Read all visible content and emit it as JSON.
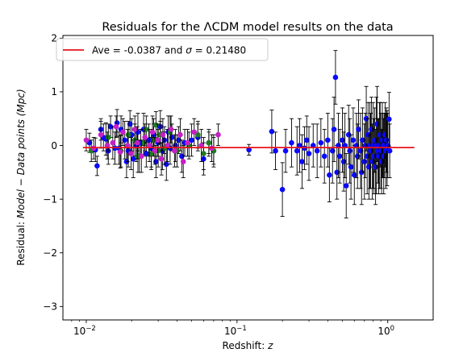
{
  "chart_data": {
    "type": "scatter",
    "title": "Residuals for the ΛCDM model results on the data",
    "xlabel_prefix": "Redshift: ",
    "xlabel_var": "z",
    "ylabel_prefix": "Residual: ",
    "ylabel_var": "Model − Data points (Mpc)",
    "xscale": "log",
    "xlim": [
      0.007,
      2.0
    ],
    "ylim": [
      -3.25,
      2.05
    ],
    "xticks": [
      {
        "value": 0.01,
        "base": "10",
        "exp": "−2"
      },
      {
        "value": 0.1,
        "base": "10",
        "exp": "−1"
      },
      {
        "value": 1,
        "base": "10",
        "exp": "0"
      }
    ],
    "yticks": [
      {
        "value": 2,
        "label": "2"
      },
      {
        "value": 1,
        "label": "1"
      },
      {
        "value": 0,
        "label": "0"
      },
      {
        "value": -1,
        "label": "−1"
      },
      {
        "value": -2,
        "label": "−2"
      },
      {
        "value": -3,
        "label": "−3"
      }
    ],
    "legend": {
      "placement": "top-left",
      "text_prefix": "Ave = -0.0387 and ",
      "text_sigma": "σ",
      "text_suffix": " = 0.21480"
    },
    "fit_line": {
      "ave": -0.0387,
      "sigma": 0.2148,
      "x_range": [
        0.0095,
        1.5
      ],
      "color": "#e8131b"
    },
    "colors": {
      "blue": "#0a0aff",
      "green": "#1e7d1e",
      "magenta": "#c71fc7",
      "error": "#000000"
    },
    "series": [
      {
        "color_key": "blue",
        "points": [
          [
            0.0105,
            0.05,
            0.18
          ],
          [
            0.0115,
            -0.08,
            0.22
          ],
          [
            0.0118,
            -0.38,
            0.18
          ],
          [
            0.0125,
            0.3,
            0.2
          ],
          [
            0.013,
            0.15,
            0.25
          ],
          [
            0.0135,
            0.12,
            0.3
          ],
          [
            0.014,
            -0.1,
            0.25
          ],
          [
            0.0145,
            0.35,
            0.2
          ],
          [
            0.0155,
            -0.05,
            0.3
          ],
          [
            0.016,
            0.42,
            0.25
          ],
          [
            0.0165,
            -0.05,
            0.3
          ],
          [
            0.017,
            0.3,
            0.25
          ],
          [
            0.018,
            0.1,
            0.35
          ],
          [
            0.0185,
            -0.3,
            0.3
          ],
          [
            0.019,
            -0.1,
            0.3
          ],
          [
            0.0195,
            0.4,
            0.25
          ],
          [
            0.02,
            0.2,
            0.3
          ],
          [
            0.0205,
            -0.25,
            0.35
          ],
          [
            0.0215,
            0.0,
            0.3
          ],
          [
            0.022,
            0.25,
            0.35
          ],
          [
            0.0225,
            -0.2,
            0.3
          ],
          [
            0.023,
            0.05,
            0.25
          ],
          [
            0.024,
            0.3,
            0.3
          ],
          [
            0.025,
            -0.15,
            0.25
          ],
          [
            0.026,
            0.1,
            0.3
          ],
          [
            0.027,
            -0.05,
            0.35
          ],
          [
            0.028,
            0.2,
            0.3
          ],
          [
            0.029,
            -0.3,
            0.3
          ],
          [
            0.03,
            0.05,
            0.25
          ],
          [
            0.031,
            0.35,
            0.3
          ],
          [
            0.032,
            -0.1,
            0.35
          ],
          [
            0.033,
            0.1,
            0.25
          ],
          [
            0.034,
            -0.35,
            0.3
          ],
          [
            0.035,
            0.25,
            0.3
          ],
          [
            0.036,
            -0.05,
            0.3
          ],
          [
            0.037,
            0.15,
            0.25
          ],
          [
            0.039,
            0.0,
            0.3
          ],
          [
            0.041,
            0.1,
            0.25
          ],
          [
            0.043,
            -0.2,
            0.3
          ],
          [
            0.045,
            0.05,
            0.25
          ],
          [
            0.05,
            0.1,
            0.3
          ],
          [
            0.055,
            0.15,
            0.25
          ],
          [
            0.06,
            -0.25,
            0.3
          ],
          [
            0.065,
            0.05,
            0.25
          ],
          [
            0.07,
            -0.1,
            0.3
          ],
          [
            0.12,
            -0.08,
            0.1
          ],
          [
            0.17,
            0.26,
            0.4
          ],
          [
            0.18,
            -0.1,
            0.35
          ],
          [
            0.2,
            -0.82,
            0.5
          ],
          [
            0.21,
            -0.1,
            0.4
          ],
          [
            0.23,
            0.05,
            0.45
          ],
          [
            0.25,
            -0.1,
            0.45
          ],
          [
            0.26,
            0.0,
            0.5
          ],
          [
            0.27,
            -0.3,
            0.5
          ],
          [
            0.28,
            -0.05,
            0.4
          ],
          [
            0.29,
            0.1,
            0.45
          ],
          [
            0.3,
            -0.15,
            0.5
          ],
          [
            0.32,
            0.0,
            0.4
          ],
          [
            0.34,
            -0.1,
            0.5
          ],
          [
            0.36,
            0.05,
            0.45
          ],
          [
            0.38,
            -0.2,
            0.5
          ],
          [
            0.4,
            0.1,
            0.5
          ],
          [
            0.41,
            -0.55,
            0.5
          ],
          [
            0.43,
            -0.1,
            0.6
          ],
          [
            0.44,
            0.3,
            0.6
          ],
          [
            0.45,
            1.27,
            0.5
          ],
          [
            0.46,
            -0.5,
            0.5
          ],
          [
            0.47,
            0.0,
            0.6
          ],
          [
            0.48,
            -0.2,
            0.5
          ],
          [
            0.5,
            0.1,
            0.6
          ],
          [
            0.51,
            -0.3,
            0.55
          ],
          [
            0.52,
            0.0,
            0.6
          ],
          [
            0.53,
            -0.75,
            0.6
          ],
          [
            0.55,
            0.2,
            0.55
          ],
          [
            0.56,
            -0.1,
            0.6
          ],
          [
            0.57,
            -0.4,
            0.6
          ],
          [
            0.59,
            0.1,
            0.6
          ],
          [
            0.6,
            -0.55,
            0.55
          ],
          [
            0.62,
            0.0,
            0.6
          ],
          [
            0.63,
            -0.2,
            0.6
          ],
          [
            0.64,
            0.3,
            0.55
          ],
          [
            0.66,
            -0.1,
            0.7
          ],
          [
            0.67,
            -0.5,
            0.6
          ],
          [
            0.68,
            0.1,
            0.6
          ],
          [
            0.7,
            -0.3,
            0.7
          ],
          [
            0.71,
            0.0,
            0.6
          ],
          [
            0.72,
            0.5,
            0.6
          ],
          [
            0.73,
            -0.2,
            0.7
          ],
          [
            0.74,
            0.2,
            0.6
          ],
          [
            0.75,
            -0.4,
            0.6
          ],
          [
            0.76,
            0.0,
            0.8
          ],
          [
            0.77,
            -0.1,
            0.7
          ],
          [
            0.78,
            0.3,
            0.6
          ],
          [
            0.79,
            -0.3,
            0.7
          ],
          [
            0.8,
            0.0,
            0.8
          ],
          [
            0.81,
            -0.2,
            0.7
          ],
          [
            0.82,
            0.1,
            0.6
          ],
          [
            0.83,
            -0.4,
            0.7
          ],
          [
            0.84,
            0.0,
            0.9
          ],
          [
            0.85,
            0.4,
            0.7
          ],
          [
            0.86,
            -0.1,
            0.6
          ],
          [
            0.87,
            -0.2,
            0.7
          ],
          [
            0.88,
            0.0,
            0.8
          ],
          [
            0.89,
            0.2,
            0.6
          ],
          [
            0.9,
            -0.1,
            0.7
          ],
          [
            0.91,
            -0.3,
            0.6
          ],
          [
            0.92,
            0.1,
            0.7
          ],
          [
            0.93,
            0.0,
            0.6
          ],
          [
            0.94,
            -0.2,
            0.7
          ],
          [
            0.95,
            0.0,
            0.6
          ],
          [
            0.96,
            0.2,
            0.6
          ],
          [
            0.97,
            -0.1,
            0.7
          ],
          [
            0.98,
            0.1,
            0.6
          ],
          [
            0.99,
            -0.05,
            0.7
          ],
          [
            1.0,
            0.0,
            0.6
          ],
          [
            1.02,
            0.49,
            0.5
          ],
          [
            1.03,
            -0.1,
            0.5
          ]
        ]
      },
      {
        "color_key": "green",
        "points": [
          [
            0.0108,
            -0.1,
            0.2
          ],
          [
            0.014,
            0.15,
            0.25
          ],
          [
            0.017,
            -0.1,
            0.3
          ],
          [
            0.019,
            0.2,
            0.25
          ],
          [
            0.021,
            0.1,
            0.3
          ],
          [
            0.022,
            -0.2,
            0.3
          ],
          [
            0.024,
            0.05,
            0.25
          ],
          [
            0.025,
            0.3,
            0.25
          ],
          [
            0.027,
            -0.15,
            0.3
          ],
          [
            0.028,
            0.1,
            0.3
          ],
          [
            0.029,
            0.38,
            0.25
          ],
          [
            0.03,
            -0.1,
            0.3
          ],
          [
            0.031,
            0.2,
            0.25
          ],
          [
            0.033,
            -0.05,
            0.3
          ],
          [
            0.036,
            0.25,
            0.3
          ],
          [
            0.04,
            -0.1,
            0.3
          ],
          [
            0.048,
            0.0,
            0.25
          ],
          [
            0.055,
            0.2,
            0.25
          ],
          [
            0.06,
            -0.15,
            0.3
          ],
          [
            0.065,
            0.05,
            0.2
          ],
          [
            0.07,
            -0.1,
            0.25
          ]
        ]
      },
      {
        "color_key": "magenta",
        "points": [
          [
            0.01,
            0.1,
            0.2
          ],
          [
            0.0112,
            -0.05,
            0.2
          ],
          [
            0.0125,
            0.2,
            0.25
          ],
          [
            0.0138,
            0.0,
            0.25
          ],
          [
            0.015,
            0.05,
            0.3
          ],
          [
            0.0158,
            0.35,
            0.2
          ],
          [
            0.0168,
            -0.12,
            0.3
          ],
          [
            0.0175,
            0.25,
            0.25
          ],
          [
            0.0188,
            0.0,
            0.3
          ],
          [
            0.0198,
            -0.15,
            0.3
          ],
          [
            0.021,
            0.3,
            0.25
          ],
          [
            0.0218,
            0.05,
            0.3
          ],
          [
            0.0232,
            -0.2,
            0.3
          ],
          [
            0.0245,
            0.15,
            0.25
          ],
          [
            0.0262,
            0.0,
            0.3
          ],
          [
            0.0275,
            0.25,
            0.3
          ],
          [
            0.0285,
            -0.1,
            0.25
          ],
          [
            0.0298,
            0.1,
            0.3
          ],
          [
            0.0315,
            -0.25,
            0.3
          ],
          [
            0.0322,
            0.2,
            0.3
          ],
          [
            0.0345,
            0.0,
            0.3
          ],
          [
            0.0365,
            0.3,
            0.25
          ],
          [
            0.0385,
            -0.1,
            0.3
          ],
          [
            0.042,
            0.2,
            0.3
          ],
          [
            0.044,
            -0.3,
            0.3
          ],
          [
            0.047,
            0.05,
            0.25
          ],
          [
            0.052,
            0.25,
            0.25
          ],
          [
            0.058,
            0.0,
            0.3
          ],
          [
            0.068,
            -0.05,
            0.25
          ],
          [
            0.075,
            0.2,
            0.2
          ]
        ]
      }
    ]
  }
}
